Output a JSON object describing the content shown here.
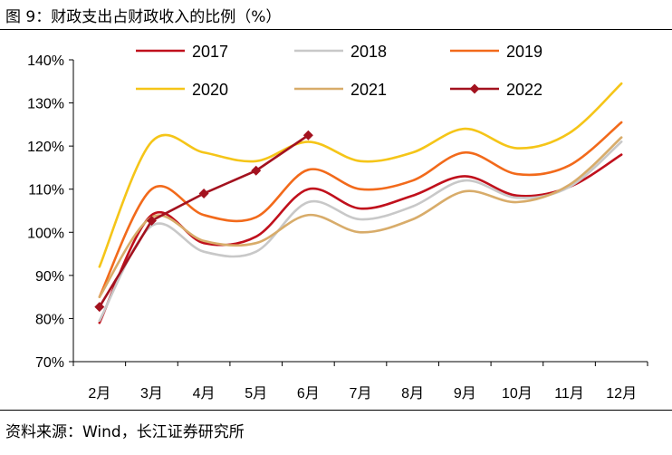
{
  "figure": {
    "title": "图 9：财政支出占财政收入的比例（%）",
    "source": "资料来源：Wind，长江证券研究所"
  },
  "chart_data": {
    "type": "line",
    "title": "财政支出占财政收入的比例（%）",
    "xlabel": "",
    "ylabel": "",
    "categories": [
      "2月",
      "3月",
      "4月",
      "5月",
      "6月",
      "7月",
      "8月",
      "9月",
      "10月",
      "11月",
      "12月"
    ],
    "y_ticks": [
      "70%",
      "80%",
      "90%",
      "100%",
      "110%",
      "120%",
      "130%",
      "140%"
    ],
    "ylim": [
      70,
      140
    ],
    "grid": false,
    "legend_position": "top",
    "series": [
      {
        "name": "2017",
        "color": "#c0101c",
        "marker": "none",
        "values": [
          79.0,
          104.0,
          97.5,
          99.0,
          110.0,
          105.5,
          108.5,
          113.0,
          108.5,
          110.5,
          118.0
        ]
      },
      {
        "name": "2018",
        "color": "#c8c8c8",
        "marker": "none",
        "values": [
          79.5,
          101.5,
          95.5,
          95.5,
          107.0,
          103.0,
          106.0,
          112.0,
          108.0,
          110.5,
          121.0
        ]
      },
      {
        "name": "2019",
        "color": "#f26a1b",
        "marker": "none",
        "values": [
          85.0,
          110.0,
          104.0,
          103.5,
          114.5,
          110.0,
          112.0,
          118.5,
          113.5,
          115.5,
          125.5
        ]
      },
      {
        "name": "2020",
        "color": "#f5c518",
        "marker": "none",
        "values": [
          92.0,
          121.0,
          118.5,
          116.5,
          121.0,
          116.5,
          118.5,
          124.0,
          119.5,
          123.0,
          134.5
        ]
      },
      {
        "name": "2021",
        "color": "#d8ac6a",
        "marker": "none",
        "values": [
          85.0,
          103.5,
          98.0,
          97.5,
          104.0,
          100.0,
          103.0,
          109.5,
          107.0,
          111.0,
          122.0
        ]
      },
      {
        "name": "2022",
        "color": "#a3121f",
        "marker": "diamond",
        "values": [
          82.7,
          102.7,
          109.0,
          114.3,
          122.5,
          null,
          null,
          null,
          null,
          null,
          null
        ]
      }
    ]
  }
}
